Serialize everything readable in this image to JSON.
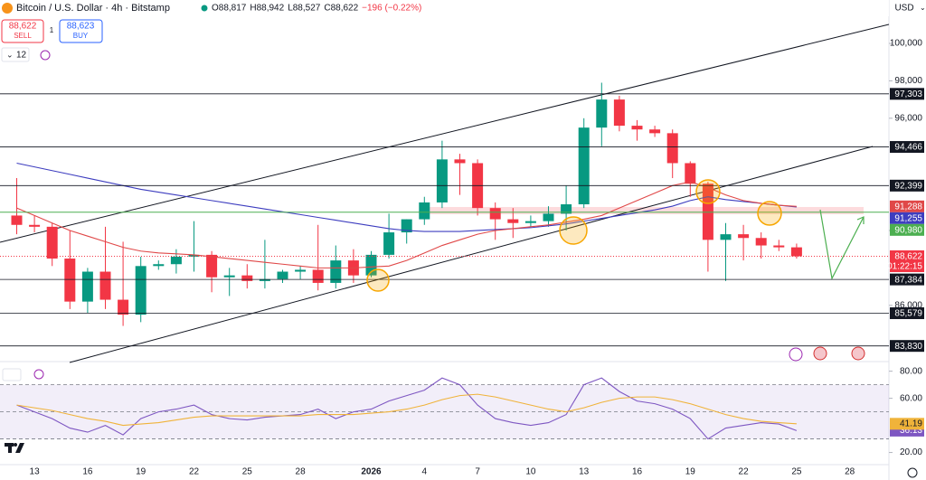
{
  "toolbar": {
    "sell_price": "88,622",
    "sell": "SELL",
    "quantity": "1",
    "buy_price": "88,623",
    "buy": "BUY",
    "indicators_count": "12",
    "currency": "USD"
  },
  "chart_data": [
    {
      "type": "candlestick",
      "title": "Bitcoin / U.S. Dollar · 4h · Bitstamp",
      "ohlc_labels": [
        "O88,817",
        "H88,942",
        "L88,527",
        "C88,622",
        "−196 (−0.22%)"
      ],
      "countdown": "01:22:15",
      "categories": [
        null,
        "13",
        null,
        null,
        "16",
        null,
        null,
        "19",
        null,
        null,
        "22",
        null,
        null,
        "25",
        null,
        null,
        "28",
        null,
        null,
        null,
        "2026",
        null,
        null,
        "4",
        null,
        null,
        "7",
        null,
        null,
        "10",
        null,
        null,
        "13",
        null,
        null,
        "16",
        null,
        null,
        "19",
        null,
        null,
        "22",
        null,
        null,
        "25",
        null,
        null,
        "28"
      ],
      "open": [
        90800,
        90300,
        90200,
        88500,
        86200,
        87800,
        86300,
        85500,
        88100,
        88200,
        88600,
        88700,
        87500,
        87600,
        87300,
        87400,
        87800,
        87900,
        87200,
        88400,
        87600,
        88700,
        89900,
        90600,
        91500,
        93800,
        93600,
        91200,
        90600,
        90400,
        90500,
        90900,
        91400,
        95500,
        97000,
        95600,
        95400,
        95200,
        93600,
        92500,
        89500,
        89800,
        89600,
        89200,
        89100,
        null,
        null,
        null
      ],
      "high": [
        92800,
        90800,
        90400,
        90000,
        88000,
        90200,
        89400,
        88600,
        88400,
        89000,
        90500,
        88900,
        88000,
        88200,
        89500,
        87900,
        88100,
        90300,
        89200,
        89000,
        88900,
        90900,
        90600,
        91800,
        94800,
        94100,
        93800,
        91500,
        91200,
        90800,
        91300,
        92400,
        96000,
        97900,
        97200,
        95900,
        95600,
        95400,
        93700,
        92600,
        90400,
        90300,
        89900,
        89500,
        89300,
        null,
        null,
        null
      ],
      "low": [
        89800,
        89900,
        88100,
        85800,
        85600,
        85800,
        84900,
        85100,
        87900,
        87700,
        87800,
        86700,
        86500,
        86900,
        86900,
        87200,
        87400,
        86800,
        86900,
        87200,
        87500,
        88500,
        89300,
        90300,
        91200,
        91900,
        90800,
        89500,
        89600,
        90200,
        90200,
        90000,
        91200,
        94500,
        95300,
        94800,
        95000,
        92800,
        91800,
        87800,
        87300,
        88400,
        88500,
        88900,
        88500,
        null,
        null,
        null
      ],
      "close": [
        90300,
        90200,
        88500,
        86200,
        87800,
        86300,
        85500,
        88100,
        88200,
        88600,
        88700,
        87500,
        87600,
        87300,
        87400,
        87800,
        87900,
        87200,
        88400,
        87600,
        88700,
        89900,
        90600,
        91500,
        93800,
        93600,
        91200,
        90600,
        90400,
        90500,
        90900,
        91400,
        95500,
        97000,
        95600,
        95400,
        95200,
        93600,
        92500,
        89500,
        89800,
        89600,
        89200,
        89100,
        88622,
        null,
        null,
        null
      ],
      "up_color": "#089981",
      "down_color": "#f23645",
      "lines": [
        {
          "color": "#3d3dbf",
          "values": [
            93600,
            93400,
            93200,
            93000,
            92800,
            92600,
            92400,
            92200,
            92050,
            91900,
            91750,
            91600,
            91450,
            91300,
            91150,
            91000,
            90850,
            90700,
            90550,
            90400,
            90250,
            90100,
            90000,
            89950,
            89950,
            89950,
            90000,
            90050,
            90100,
            90150,
            90250,
            90350,
            90500,
            90650,
            90800,
            90950,
            91100,
            91300,
            91600,
            91800,
            91650,
            91550,
            91450,
            91350,
            91255,
            null,
            null,
            null
          ]
        },
        {
          "color": "#e04848",
          "values": [
            91200,
            90800,
            90400,
            90000,
            89700,
            89400,
            89100,
            88900,
            88800,
            88750,
            88700,
            88600,
            88500,
            88400,
            88300,
            88200,
            88100,
            88000,
            88000,
            88000,
            88050,
            88100,
            88400,
            88800,
            89200,
            89500,
            89800,
            90000,
            90100,
            90200,
            90300,
            90450,
            90600,
            90800,
            91200,
            91600,
            92000,
            92400,
            92600,
            92300,
            91900,
            91600,
            91450,
            91350,
            91288,
            null,
            null,
            null
          ]
        }
      ],
      "levels": [
        {
          "value": 97303,
          "label": "97,303",
          "color": "#131722",
          "line": true
        },
        {
          "value": 94466,
          "label": "94,466",
          "color": "#131722",
          "line": true
        },
        {
          "value": 92399,
          "label": "92,399",
          "color": "#131722",
          "line": true
        },
        {
          "value": 91288,
          "label": "91,288",
          "color": "#e04848",
          "line": false
        },
        {
          "value": 91255,
          "label": "91,255",
          "color": "#3d3dbf",
          "line": false
        },
        {
          "value": 90980,
          "label": "90,980",
          "color": "#4caf50",
          "line": true
        },
        {
          "value": 88622,
          "label": "88,622",
          "color": "#f23645",
          "line": true
        },
        {
          "value": 87384,
          "label": "87,384",
          "color": "#131722",
          "line": true
        },
        {
          "value": 85579,
          "label": "85,579",
          "color": "#131722",
          "line": true
        },
        {
          "value": 83830,
          "label": "83,830",
          "color": "#131722",
          "line": true
        }
      ],
      "ylim": [
        83380,
        102320
      ],
      "yticks": [
        {
          "value": 100000,
          "label": "100,000"
        },
        {
          "value": 98000,
          "label": "98,000"
        },
        {
          "value": 96000,
          "label": "96,000"
        },
        {
          "value": 90000,
          "label": "90,000"
        },
        {
          "value": 86000,
          "label": "86,000"
        }
      ]
    },
    {
      "type": "line",
      "series": [
        {
          "color": "#7e57c2",
          "values": [
            55,
            50,
            45,
            38,
            35,
            40,
            33,
            45,
            50,
            52,
            55,
            48,
            45,
            44,
            46,
            47,
            48,
            52,
            45,
            50,
            52,
            58,
            62,
            66,
            75,
            70,
            55,
            45,
            42,
            40,
            42,
            48,
            70,
            75,
            65,
            58,
            56,
            52,
            45,
            30,
            38,
            40,
            42,
            41,
            36.13,
            null,
            null,
            null
          ]
        },
        {
          "color": "#f0b33a",
          "values": [
            55,
            53,
            51,
            48,
            45,
            43,
            40,
            41,
            42,
            44,
            46,
            47,
            47,
            47,
            47,
            47,
            47,
            48,
            48,
            48,
            49,
            50,
            52,
            55,
            59,
            62,
            63,
            61,
            58,
            55,
            52,
            50,
            53,
            57,
            60,
            61,
            61,
            59,
            56,
            52,
            48,
            45,
            43,
            42,
            41.19,
            null,
            null,
            null
          ]
        }
      ],
      "levels": [
        70,
        50,
        30
      ],
      "ylim": [
        11.7,
        85.1
      ],
      "yticks": [
        {
          "value": 80,
          "label": "80.00"
        },
        {
          "value": 60,
          "label": "60.00"
        },
        {
          "value": 20,
          "label": "20.00"
        }
      ]
    }
  ]
}
